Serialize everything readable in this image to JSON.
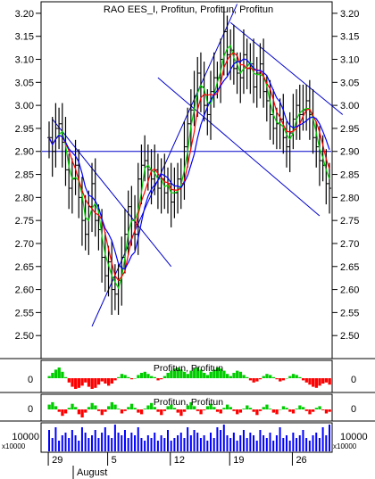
{
  "chart_data": {
    "type": "line",
    "title": "RAO EES_I, Profitun, Profitun, Profitun",
    "ylim": [
      2.45,
      3.225
    ],
    "y_ticks": [
      2.5,
      2.55,
      2.6,
      2.65,
      2.7,
      2.75,
      2.8,
      2.85,
      2.9,
      2.95,
      3.0,
      3.05,
      3.1,
      3.15,
      3.2
    ],
    "x_tick_labels": [
      "29",
      "5",
      "12",
      "19",
      "26"
    ],
    "x_month_label": "August",
    "colors": {
      "price": "#000000",
      "ma_fast": "#00cc00",
      "ma_mid": "#ff0000",
      "ma_slow": "#0000ff",
      "trendline": "#0000cc",
      "hist_up": "#00cc00",
      "hist_down": "#ff0000",
      "volume": "#0000ff"
    },
    "horizontal_level": 2.9,
    "trendlines": [
      {
        "name": "",
        "from": [
          13,
          2.52
        ],
        "to": [
          57,
          3.22
        ]
      },
      {
        "name": "",
        "from": [
          1,
          2.97
        ],
        "to": [
          37,
          2.65
        ]
      },
      {
        "name": "",
        "from": [
          33,
          3.06
        ],
        "to": [
          82,
          2.76
        ]
      },
      {
        "name": "",
        "from": [
          55,
          3.18
        ],
        "to": [
          89,
          2.98
        ]
      }
    ],
    "price_series": [
      2.93,
      2.9,
      2.95,
      2.96,
      2.92,
      2.86,
      2.82,
      2.84,
      2.87,
      2.8,
      2.75,
      2.72,
      2.78,
      2.83,
      2.75,
      2.73,
      2.67,
      2.63,
      2.66,
      2.6,
      2.59,
      2.62,
      2.67,
      2.72,
      2.78,
      2.75,
      2.72,
      2.84,
      2.87,
      2.88,
      2.86,
      2.84,
      2.86,
      2.82,
      2.84,
      2.81,
      2.83,
      2.79,
      2.81,
      2.84,
      2.83,
      2.91,
      2.96,
      2.99,
      3.02,
      3.07,
      3.04,
      3.0,
      2.98,
      3.03,
      3.06,
      3.06,
      3.1,
      3.16,
      3.11,
      3.12,
      3.08,
      3.07,
      3.06,
      3.11,
      3.08,
      3.09,
      3.04,
      3.07,
      3.09,
      3.03,
      3.01,
      2.98,
      2.95,
      2.96,
      2.97,
      2.93,
      2.91,
      2.94,
      2.97,
      3.0,
      2.98,
      2.99,
      3.01,
      2.98,
      2.93,
      2.91,
      2.88,
      2.87,
      2.83,
      2.82
    ],
    "oscillator_1": {
      "label": "Profitun, Profitun",
      "zero_label": "0",
      "values": [
        0.2,
        0.5,
        0.8,
        1.0,
        0.6,
        0.1,
        -0.4,
        -0.8,
        -1.0,
        -0.9,
        -0.7,
        -0.4,
        -0.8,
        -1.0,
        -0.9,
        -0.6,
        -0.3,
        -0.5,
        -0.7,
        -0.5,
        -0.2,
        0.1,
        0.4,
        0.3,
        0.1,
        -0.1,
        0.0,
        0.3,
        0.5,
        0.6,
        0.4,
        0.2,
        0.1,
        -0.2,
        -0.1,
        0.2,
        0.5,
        0.7,
        0.9,
        1.0,
        0.8,
        0.6,
        0.4,
        0.7,
        0.9,
        1.0,
        0.8,
        0.5,
        0.3,
        0.6,
        0.8,
        1.0,
        0.9,
        0.7,
        0.4,
        0.2,
        0.5,
        0.7,
        0.6,
        0.3,
        0.1,
        -0.2,
        -0.4,
        -0.3,
        -0.1,
        0.2,
        0.4,
        0.3,
        0.1,
        -0.1,
        -0.3,
        -0.2,
        0.0,
        0.2,
        0.4,
        0.3,
        0.1,
        -0.2,
        -0.4,
        -0.6,
        -0.8,
        -0.9,
        -0.7,
        -0.5,
        -0.4,
        -0.6
      ]
    },
    "oscillator_2": {
      "label": "Profitun, Profitun",
      "zero_label": "0",
      "values": [
        0.6,
        0.9,
        0.4,
        -0.3,
        -0.8,
        -0.5,
        0.2,
        0.7,
        0.3,
        -0.6,
        -1.0,
        -0.4,
        0.3,
        0.8,
        0.5,
        -0.2,
        -0.7,
        -0.3,
        0.4,
        0.9,
        0.6,
        0.1,
        -0.5,
        -0.2,
        0.3,
        0.7,
        0.2,
        -0.4,
        -0.6,
        0.1,
        0.5,
        0.8,
        0.3,
        -0.3,
        -0.7,
        -0.2,
        0.4,
        0.6,
        0.2,
        -0.4,
        -0.8,
        -0.3,
        0.5,
        0.9,
        0.4,
        -0.2,
        -0.6,
        -0.1,
        0.4,
        0.7,
        0.3,
        -0.3,
        -0.5,
        0.2,
        0.6,
        0.3,
        -0.2,
        -0.6,
        -0.4,
        0.1,
        0.5,
        0.2,
        -0.3,
        -0.7,
        -0.2,
        0.3,
        0.6,
        0.1,
        -0.4,
        -0.6,
        0.0,
        0.4,
        0.2,
        -0.3,
        -0.5,
        0.1,
        0.5,
        0.3,
        -0.2,
        -0.6,
        -0.3,
        0.2,
        0.4,
        -0.1,
        -0.5,
        -0.3
      ]
    },
    "volume": {
      "label_left": "x10000",
      "label_right": "x10000",
      "tick_label": "10000",
      "values": [
        0.8,
        0.5,
        0.9,
        0.4,
        0.6,
        0.7,
        0.5,
        0.8,
        0.6,
        0.4,
        0.9,
        0.7,
        0.5,
        0.6,
        0.8,
        0.5,
        0.7,
        0.9,
        0.6,
        0.5,
        1.0,
        0.7,
        0.6,
        0.8,
        0.5,
        0.7,
        0.6,
        0.9,
        0.5,
        0.4,
        0.6,
        0.5,
        0.7,
        0.4,
        0.6,
        0.5,
        0.8,
        0.4,
        0.5,
        0.6,
        0.7,
        0.5,
        0.9,
        0.6,
        0.8,
        0.7,
        0.5,
        0.6,
        0.4,
        0.7,
        0.5,
        0.9,
        0.8,
        1.0,
        0.6,
        0.5,
        0.7,
        0.4,
        0.6,
        0.8,
        0.5,
        0.7,
        0.6,
        0.4,
        0.8,
        0.6,
        0.5,
        0.7,
        0.4,
        0.6,
        0.9,
        0.5,
        0.6,
        0.4,
        0.7,
        0.5,
        0.6,
        0.8,
        0.5,
        0.4,
        0.6,
        0.7,
        0.5,
        0.9,
        0.6,
        1.0
      ]
    }
  }
}
